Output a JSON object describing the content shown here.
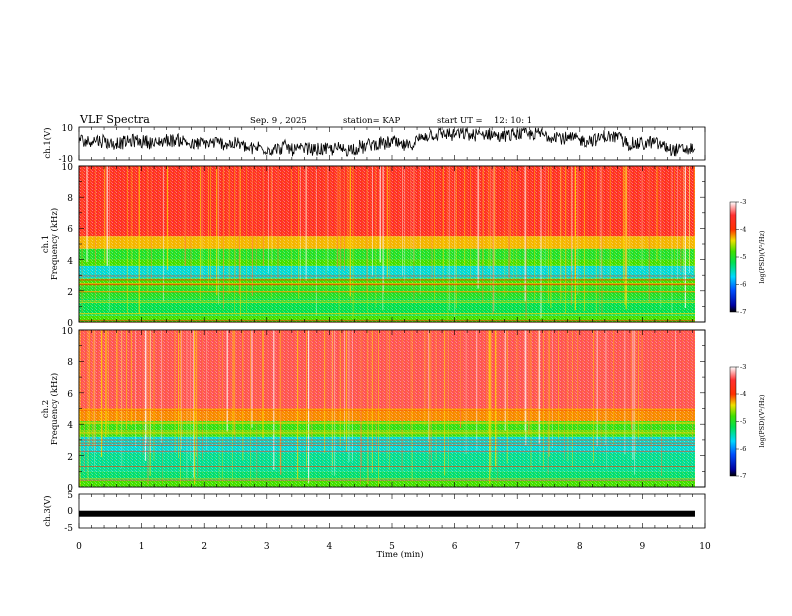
{
  "chart_data": {
    "type": "heatmap",
    "title": "VLF Spectra",
    "header": {
      "date": "Sep. 9 , 2025",
      "station": "station= KAP",
      "start_ut_label": "start  UT =",
      "start_ut_value": "12: 10: 1"
    },
    "time_axis": {
      "label": "Time  (min)",
      "range": [
        0,
        10
      ],
      "ticks": [
        "0",
        "1",
        "2",
        "3",
        "4",
        "5",
        "6",
        "7",
        "8",
        "9",
        "10"
      ]
    },
    "panels": {
      "ch1_waveform": {
        "ylabel": "ch.1(V)",
        "ylim": [
          -10,
          10
        ],
        "tick_labels": [
          "10",
          "-10"
        ]
      },
      "ch1_spectrogram": {
        "ylabel_channel": "ch.1",
        "ylabel": "Frequency  (kHz)",
        "ylim": [
          0,
          10
        ],
        "tick_labels": [
          "0",
          "2",
          "4",
          "6",
          "8",
          "10"
        ],
        "bands_khz": [
          {
            "from": 0.0,
            "to": 0.4,
            "log_psd": -4.8
          },
          {
            "from": 0.4,
            "to": 1.5,
            "log_psd": -5.2
          },
          {
            "from": 1.5,
            "to": 2.3,
            "log_psd": -5.0
          },
          {
            "from": 2.3,
            "to": 2.8,
            "log_psd": -4.8
          },
          {
            "from": 2.8,
            "to": 3.6,
            "log_psd": -5.6
          },
          {
            "from": 3.6,
            "to": 4.0,
            "log_psd": -4.8
          },
          {
            "from": 4.0,
            "to": 4.7,
            "log_psd": -5.0
          },
          {
            "from": 4.7,
            "to": 5.5,
            "log_psd": -4.3
          },
          {
            "from": 5.5,
            "to": 10.0,
            "log_psd": -3.6
          }
        ]
      },
      "ch2_spectrogram": {
        "ylabel_channel": "ch.2",
        "ylabel": "Frequency  (kHz)",
        "ylim": [
          0,
          10
        ],
        "tick_labels": [
          "0",
          "2",
          "4",
          "6",
          "8",
          "10"
        ],
        "bands_khz": [
          {
            "from": 0.0,
            "to": 0.4,
            "log_psd": -4.8
          },
          {
            "from": 0.4,
            "to": 1.0,
            "log_psd": -5.3
          },
          {
            "from": 1.0,
            "to": 2.2,
            "log_psd": -5.4
          },
          {
            "from": 2.2,
            "to": 3.2,
            "log_psd": -5.6
          },
          {
            "from": 3.2,
            "to": 4.2,
            "log_psd": -4.9
          },
          {
            "from": 4.2,
            "to": 5.0,
            "log_psd": -4.2
          },
          {
            "from": 5.0,
            "to": 10.0,
            "log_psd": -3.4
          }
        ]
      },
      "ch3_waveform": {
        "ylabel": "ch.3(V)",
        "ylim": [
          -5,
          5
        ],
        "tick_labels": [
          "5",
          "0",
          "-5"
        ],
        "level_v": -0.8
      }
    },
    "colorbar": {
      "label": "log(PSD)(V²/Hz)",
      "range": [
        -7,
        -3
      ],
      "tick_labels": [
        "-3",
        "-4",
        "-5",
        "-6",
        "-7"
      ]
    }
  }
}
